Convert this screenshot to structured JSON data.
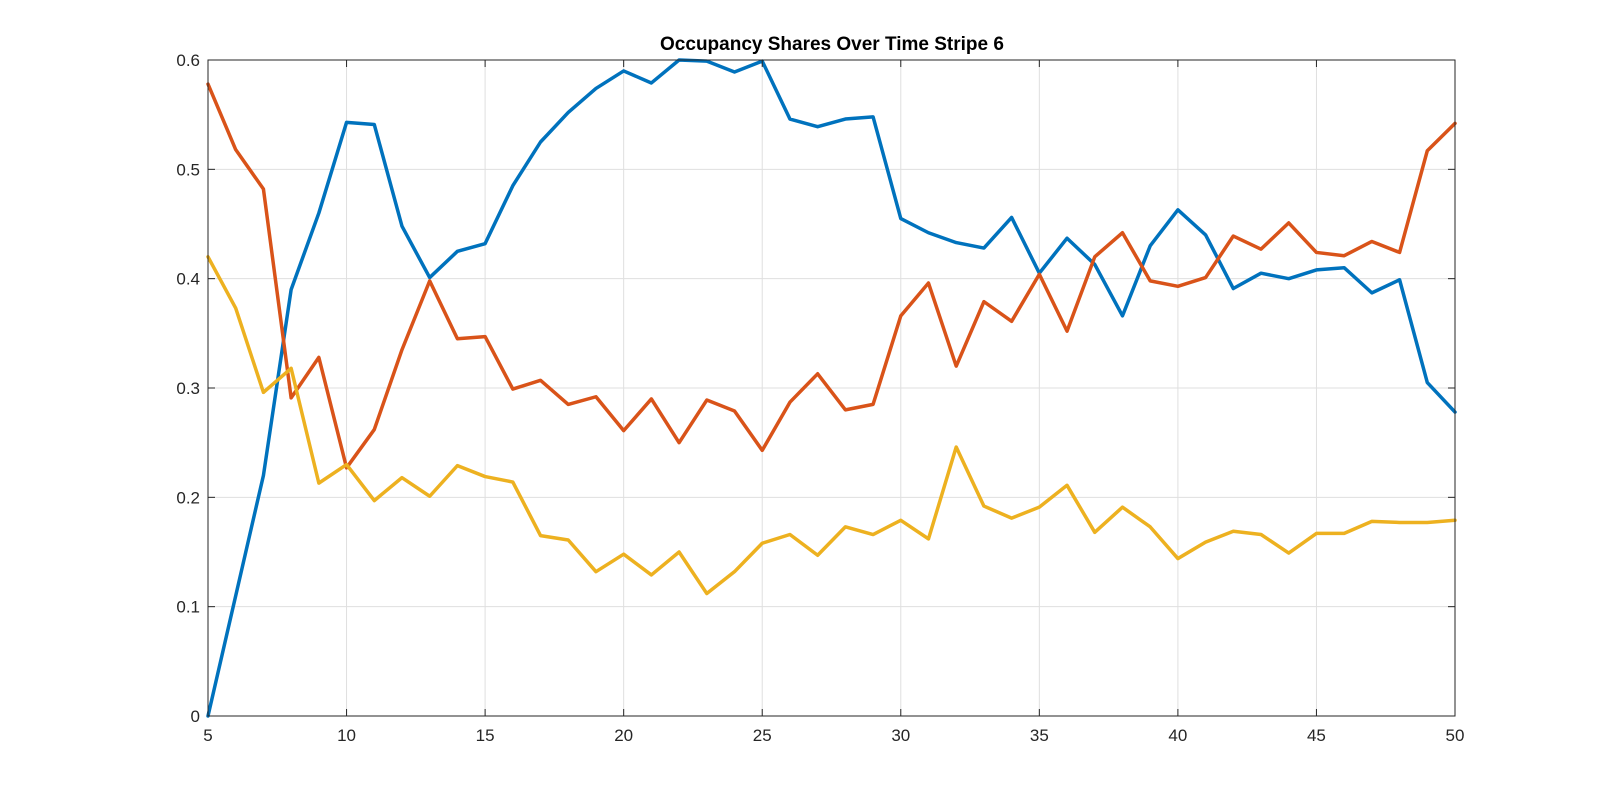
{
  "chart_data": {
    "type": "line",
    "title": "Occupancy Shares Over Time Stripe 6",
    "xlabel": "",
    "ylabel": "",
    "xlim": [
      5,
      50
    ],
    "ylim": [
      0,
      0.6
    ],
    "xticks": [
      5,
      10,
      15,
      20,
      25,
      30,
      35,
      40,
      45,
      50
    ],
    "yticks": [
      0,
      0.1,
      0.2,
      0.3,
      0.4,
      0.5,
      0.6
    ],
    "xtick_labels": [
      "5",
      "10",
      "15",
      "20",
      "25",
      "30",
      "35",
      "40",
      "45",
      "50"
    ],
    "ytick_labels": [
      "0",
      "0.1",
      "0.2",
      "0.3",
      "0.4",
      "0.5",
      "0.6"
    ],
    "grid": true,
    "x": [
      5,
      6,
      7,
      8,
      9,
      10,
      11,
      12,
      13,
      14,
      15,
      16,
      17,
      18,
      19,
      20,
      21,
      22,
      23,
      24,
      25,
      26,
      27,
      28,
      29,
      30,
      31,
      32,
      33,
      34,
      35,
      36,
      37,
      38,
      39,
      40,
      41,
      42,
      43,
      44,
      45,
      46,
      47,
      48,
      49,
      50
    ],
    "series": [
      {
        "color": "#0072BD",
        "values": [
          0.0,
          0.11,
          0.22,
          0.39,
          0.46,
          0.543,
          0.541,
          0.448,
          0.401,
          0.425,
          0.432,
          0.485,
          0.525,
          0.552,
          0.574,
          0.59,
          0.579,
          0.6,
          0.599,
          0.589,
          0.599,
          0.546,
          0.539,
          0.546,
          0.548,
          0.455,
          0.442,
          0.433,
          0.428,
          0.456,
          0.405,
          0.437,
          0.413,
          0.366,
          0.43,
          0.463,
          0.44,
          0.391,
          0.405,
          0.4,
          0.408,
          0.41,
          0.387,
          0.399,
          0.305,
          0.278
        ]
      },
      {
        "color": "#D95319",
        "values": [
          0.578,
          0.518,
          0.482,
          0.291,
          0.328,
          0.227,
          0.262,
          0.335,
          0.398,
          0.345,
          0.347,
          0.299,
          0.307,
          0.285,
          0.292,
          0.261,
          0.29,
          0.25,
          0.289,
          0.279,
          0.243,
          0.287,
          0.313,
          0.28,
          0.285,
          0.366,
          0.396,
          0.32,
          0.379,
          0.361,
          0.404,
          0.352,
          0.42,
          0.442,
          0.398,
          0.393,
          0.401,
          0.439,
          0.427,
          0.451,
          0.424,
          0.421,
          0.434,
          0.424,
          0.517,
          0.542
        ]
      },
      {
        "color": "#EDB120",
        "values": [
          0.42,
          0.373,
          0.296,
          0.318,
          0.213,
          0.23,
          0.197,
          0.218,
          0.201,
          0.229,
          0.219,
          0.214,
          0.165,
          0.161,
          0.132,
          0.148,
          0.129,
          0.15,
          0.112,
          0.132,
          0.158,
          0.166,
          0.147,
          0.173,
          0.166,
          0.179,
          0.162,
          0.246,
          0.192,
          0.181,
          0.191,
          0.211,
          0.168,
          0.191,
          0.173,
          0.144,
          0.159,
          0.169,
          0.166,
          0.149,
          0.167,
          0.167,
          0.178,
          0.177,
          0.177,
          0.179
        ]
      }
    ]
  }
}
